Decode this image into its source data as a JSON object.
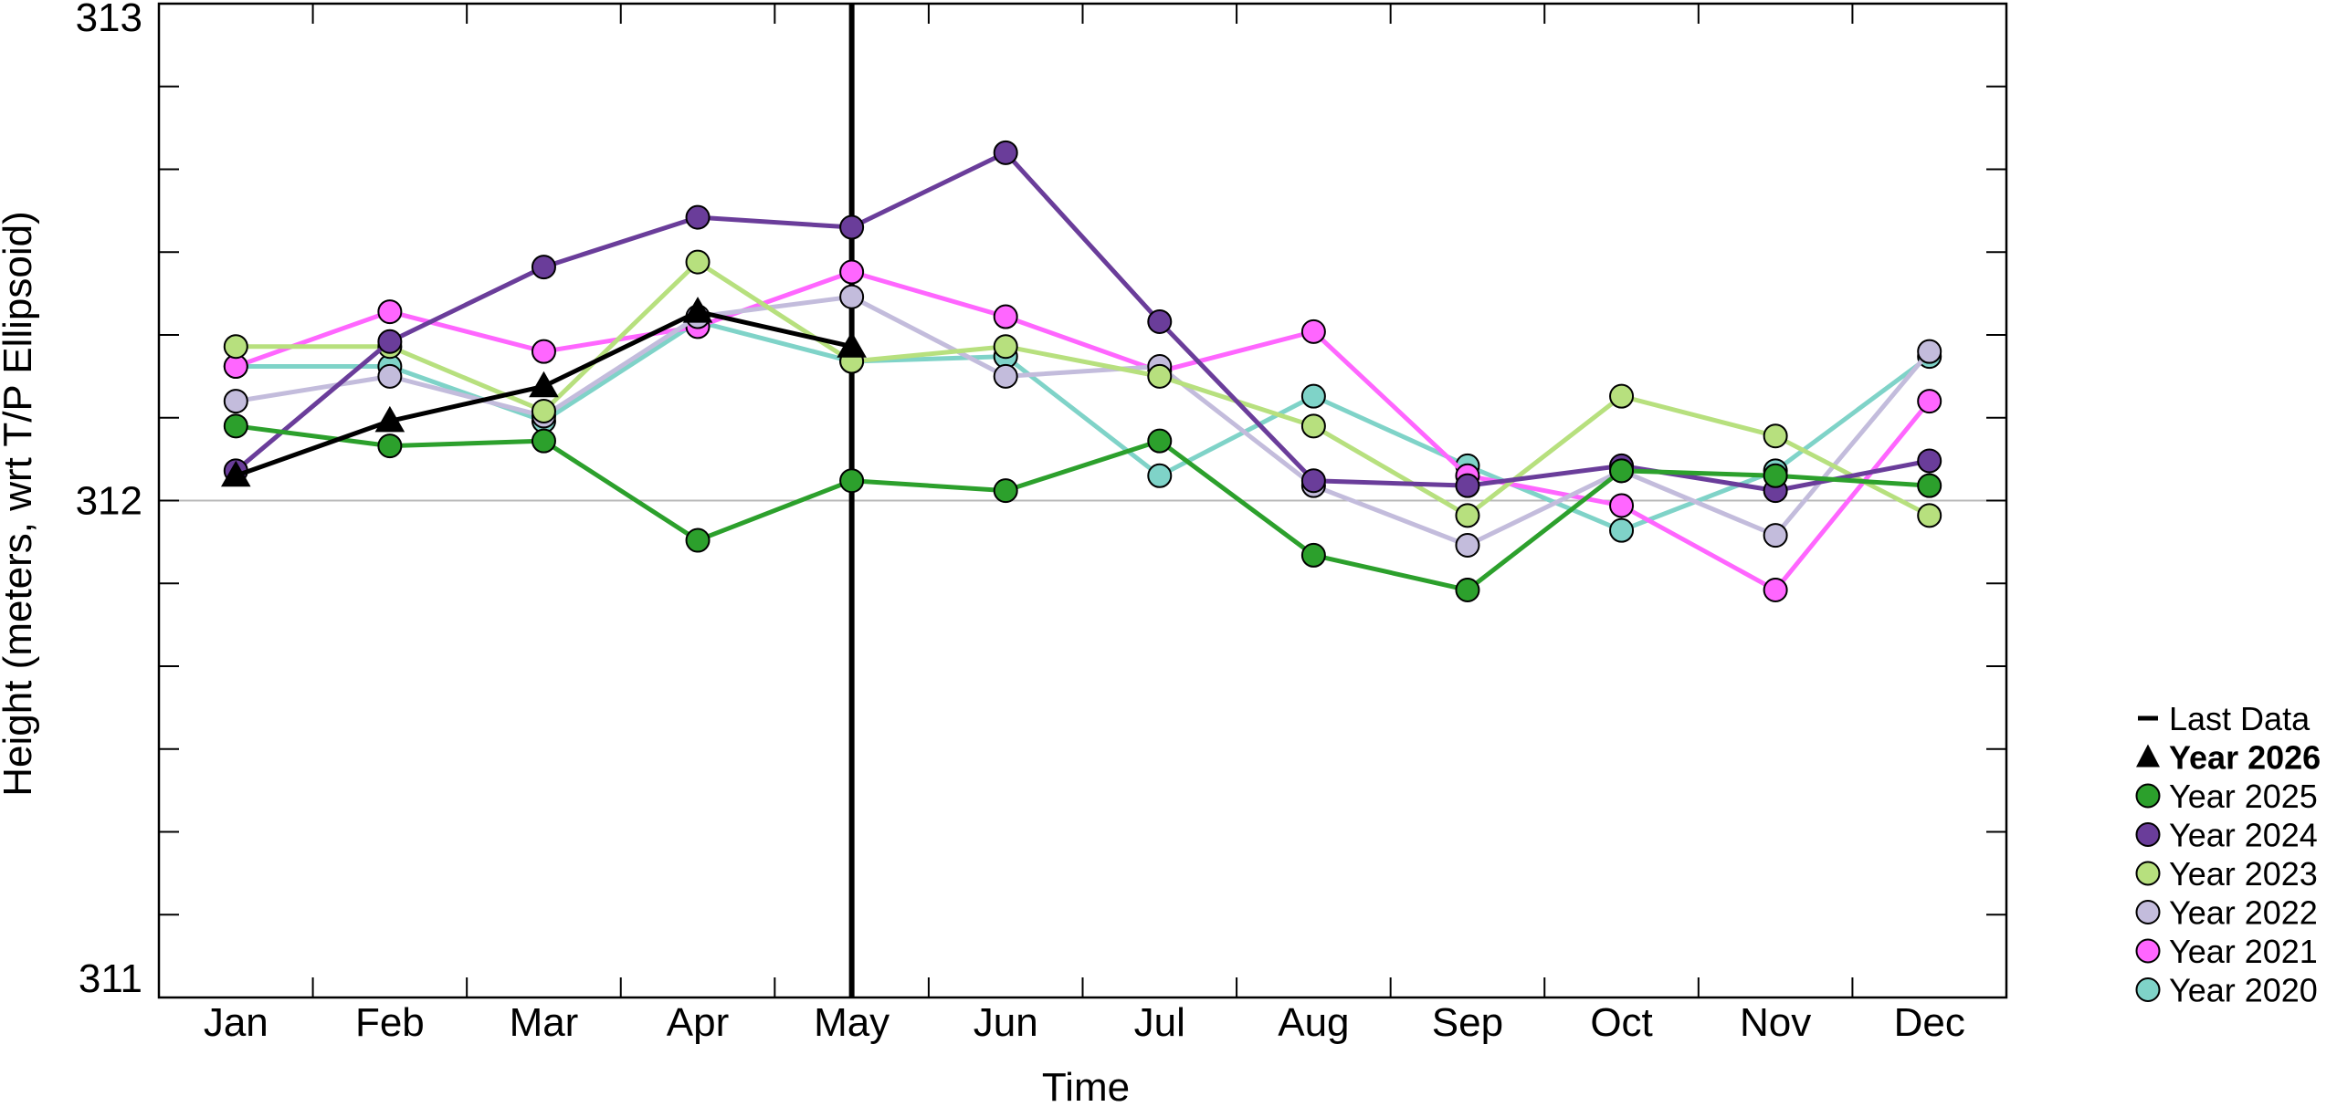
{
  "chart_data": {
    "type": "line",
    "title": "",
    "xlabel": "Time",
    "ylabel": "Height (meters, wrt T/P Ellipsoid)",
    "categories": [
      "Jan",
      "Feb",
      "Mar",
      "Apr",
      "May",
      "Jun",
      "Jul",
      "Aug",
      "Sep",
      "Oct",
      "Nov",
      "Dec"
    ],
    "ylim": [
      311,
      313
    ],
    "y_ticks_labeled": [
      {
        "value": 313,
        "label": "313"
      },
      {
        "value": 312,
        "label": "312"
      },
      {
        "value": 311,
        "label": "311"
      }
    ],
    "y_minor_step": 0.166667,
    "reference_line": 312,
    "current_marker": {
      "label": "Last Data",
      "category": "May"
    },
    "legend_position": "right",
    "series": [
      {
        "name": "Year 2020",
        "color": "#7fd3c8",
        "marker": "circle",
        "values": [
          312.27,
          312.27,
          312.16,
          312.36,
          312.28,
          312.29,
          312.05,
          312.21,
          312.07,
          311.94,
          312.06,
          312.29
        ]
      },
      {
        "name": "Year 2021",
        "color": "#ff66ff",
        "marker": "circle",
        "values": [
          312.27,
          312.38,
          312.3,
          312.35,
          312.46,
          312.37,
          312.26,
          312.34,
          312.05,
          311.99,
          311.82,
          312.2
        ]
      },
      {
        "name": "Year 2022",
        "color": "#c3bcdc",
        "marker": "circle",
        "values": [
          312.2,
          312.25,
          312.17,
          312.37,
          312.41,
          312.25,
          312.27,
          312.03,
          311.91,
          312.06,
          311.93,
          312.3
        ]
      },
      {
        "name": "Year 2023",
        "color": "#b7e07e",
        "marker": "circle",
        "values": [
          312.31,
          312.31,
          312.18,
          312.48,
          312.28,
          312.31,
          312.25,
          312.15,
          311.97,
          312.21,
          312.13,
          311.97
        ]
      },
      {
        "name": "Year 2024",
        "color": "#6a3d9a",
        "marker": "circle",
        "values": [
          312.06,
          312.32,
          312.47,
          312.57,
          312.55,
          312.7,
          312.36,
          312.04,
          312.03,
          312.07,
          312.02,
          312.08
        ]
      },
      {
        "name": "Year 2025",
        "color": "#2ca02c",
        "marker": "circle",
        "values": [
          312.15,
          312.11,
          312.12,
          311.92,
          312.04,
          312.02,
          312.12,
          311.89,
          311.82,
          312.06,
          312.05,
          312.03
        ]
      },
      {
        "name": "Year 2026",
        "color": "#000000",
        "marker": "triangle",
        "bold": true,
        "values": [
          312.05,
          312.16,
          312.23,
          312.38,
          312.31,
          null,
          null,
          null,
          null,
          null,
          null,
          null
        ]
      }
    ]
  },
  "legend": {
    "items": [
      {
        "label": "Last Data",
        "symbol": "dash",
        "color": "#000000",
        "bold": false
      },
      {
        "label": "Year 2026",
        "symbol": "triangle",
        "color": "#000000",
        "bold": true
      },
      {
        "label": "Year 2025",
        "symbol": "circle",
        "color": "#2ca02c",
        "bold": false
      },
      {
        "label": "Year 2024",
        "symbol": "circle",
        "color": "#6a3d9a",
        "bold": false
      },
      {
        "label": "Year 2023",
        "symbol": "circle",
        "color": "#b7e07e",
        "bold": false
      },
      {
        "label": "Year 2022",
        "symbol": "circle",
        "color": "#c3bcdc",
        "bold": false
      },
      {
        "label": "Year 2021",
        "symbol": "circle",
        "color": "#ff66ff",
        "bold": false
      },
      {
        "label": "Year 2020",
        "symbol": "circle",
        "color": "#7fd3c8",
        "bold": false
      }
    ]
  }
}
